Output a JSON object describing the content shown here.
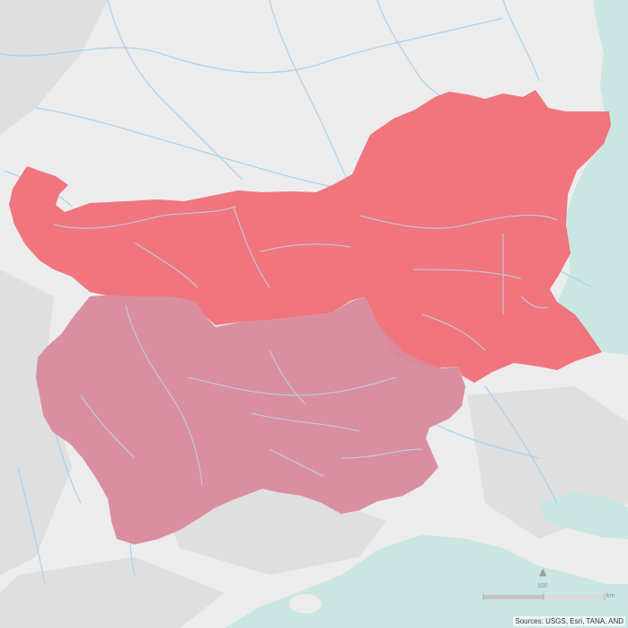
{
  "map": {
    "regions": [
      {
        "id": "northern-region",
        "fill": "#f06a74"
      },
      {
        "id": "southwestern-region",
        "fill": "#d98a9c"
      }
    ],
    "colors": {
      "land": "#ececec",
      "sea": "#c9e6e3",
      "river": "#a8d2ef",
      "relief": "#d6d6d6"
    },
    "scale_bar": {
      "label": "100",
      "unit": "km"
    },
    "north_arrow_icon": "north-arrow-icon",
    "attribution": "Sources: USGS, Esri, TANA, AND"
  }
}
